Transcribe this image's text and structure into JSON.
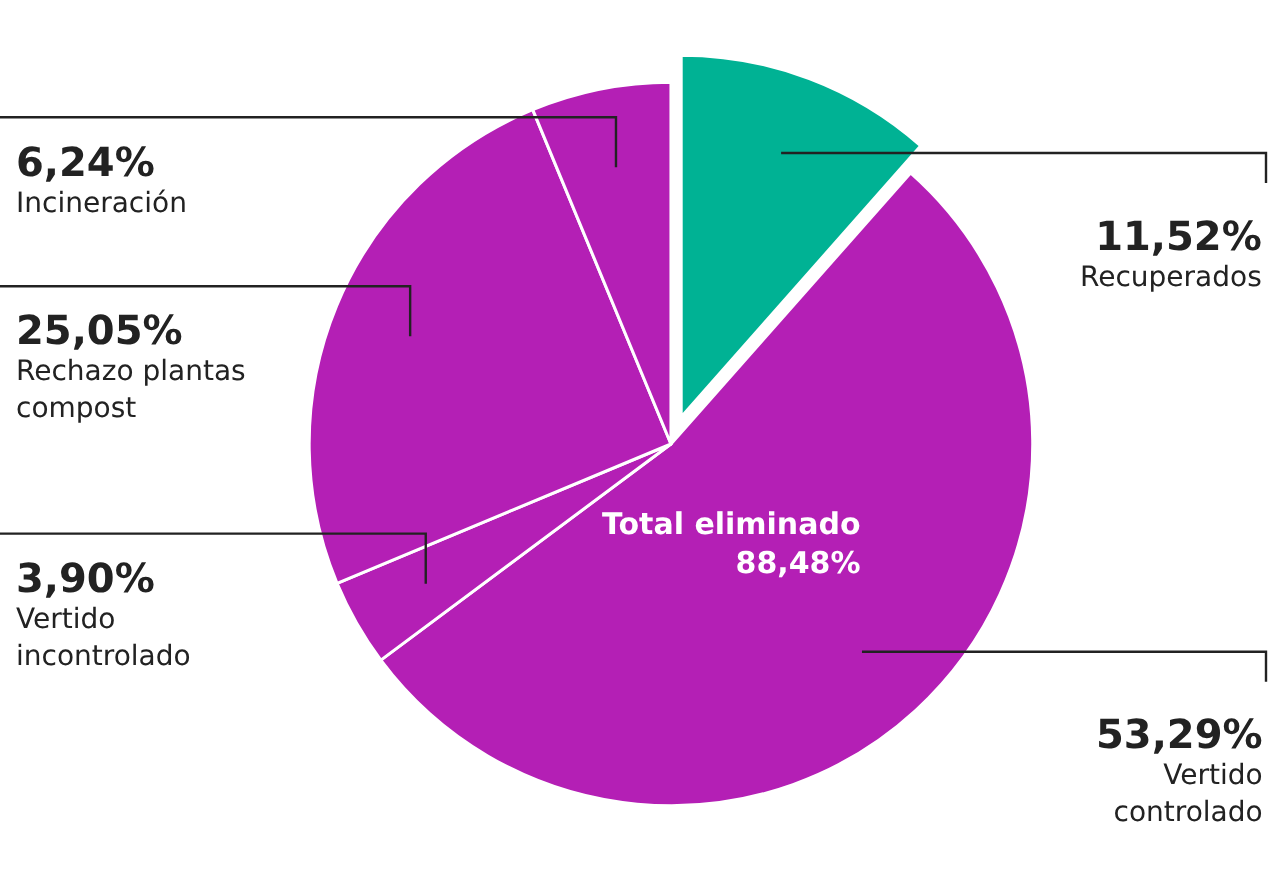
{
  "chart_data": {
    "type": "pie",
    "categories": [
      "Recuperados",
      "Vertido controlado",
      "Vertido incontrolado",
      "Rechazo plantas compost",
      "Incineración"
    ],
    "values": [
      11.52,
      53.29,
      3.9,
      25.05,
      6.24
    ],
    "value_labels": [
      "11,52%",
      "53,29%",
      "3,90%",
      "25,05%",
      "6,24%"
    ],
    "colors": [
      "#00b294",
      "#b41fb5",
      "#b41fb5",
      "#b41fb5",
      "#b41fb5"
    ],
    "annotations": [
      "Total eliminado\n88,48%"
    ],
    "legend": false
  }
}
